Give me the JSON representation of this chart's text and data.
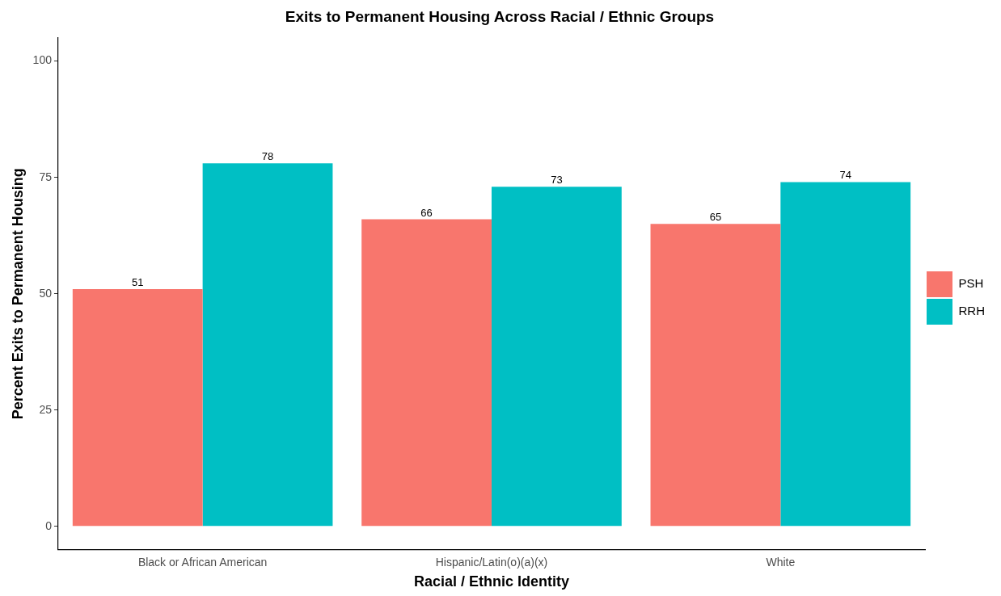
{
  "chart_data": {
    "type": "bar",
    "title": "Exits to Permanent Housing Across Racial / Ethnic Groups",
    "xlabel": "Racial / Ethnic Identity",
    "ylabel": "Percent Exits to Permanent Housing",
    "categories": [
      "Black or African American",
      "Hispanic/Latin(o)(a)(x)",
      "White"
    ],
    "series": [
      {
        "name": "PSH",
        "color": "#f8766d",
        "values": [
          51,
          66,
          65
        ]
      },
      {
        "name": "RRH",
        "color": "#00bfc4",
        "values": [
          78,
          73,
          74
        ]
      }
    ],
    "ylim": [
      -5,
      105
    ],
    "yticks": [
      0,
      25,
      50,
      75,
      100
    ],
    "grid": false,
    "legend": "right",
    "data_labels": true
  }
}
